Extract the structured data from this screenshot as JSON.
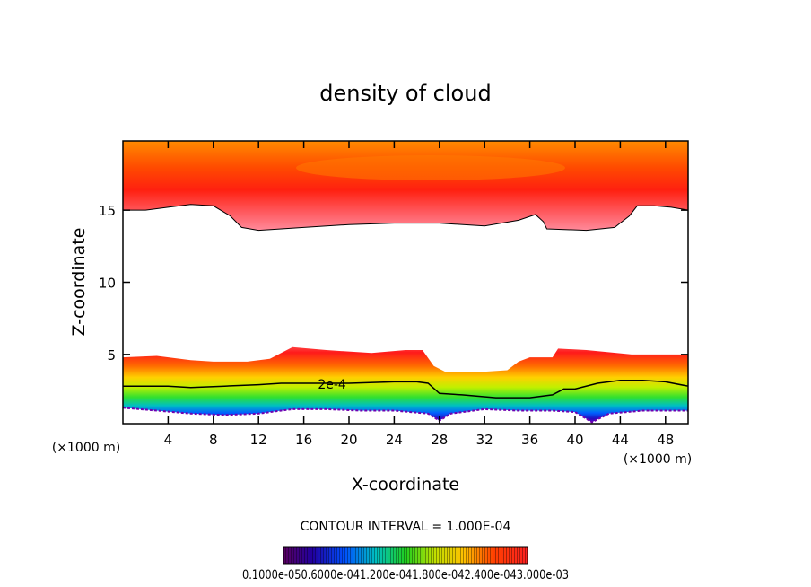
{
  "chart_data": {
    "type": "heatmap",
    "title": "density of cloud",
    "xlabel": "X-coordinate",
    "ylabel": "Z-coordinate",
    "x_unit_left": "(×1000 m)",
    "x_unit_right": "(×1000 m)",
    "xlim": [
      0,
      50
    ],
    "ylim": [
      0.2,
      19.8
    ],
    "x_ticks": [
      4,
      8,
      12,
      16,
      20,
      24,
      28,
      32,
      36,
      40,
      44,
      48
    ],
    "y_ticks": [
      5,
      10,
      15
    ],
    "contour_label": "2e-4",
    "contour_label_position": [
      18.5,
      2.95
    ],
    "contour_interval_text": "CONTOUR INTERVAL = 1.000E-04",
    "colorbar_labels_text": "0.1000e-050.6000e-041.200e-041.800e-042.400e-043.000e-03",
    "upper_layer": {
      "top_z": 19.8,
      "bottom_boundary": [
        [
          0,
          15.0
        ],
        [
          2,
          15.0
        ],
        [
          4,
          15.2
        ],
        [
          6,
          15.4
        ],
        [
          8,
          15.3
        ],
        [
          9.5,
          14.6
        ],
        [
          10.5,
          13.8
        ],
        [
          12,
          13.6
        ],
        [
          16,
          13.8
        ],
        [
          20,
          14.0
        ],
        [
          24,
          14.1
        ],
        [
          28,
          14.1
        ],
        [
          32,
          13.9
        ],
        [
          35,
          14.3
        ],
        [
          36.5,
          14.7
        ],
        [
          37.2,
          14.2
        ],
        [
          37.5,
          13.7
        ],
        [
          41,
          13.6
        ],
        [
          43.5,
          13.8
        ],
        [
          44.8,
          14.6
        ],
        [
          45.5,
          15.3
        ],
        [
          47,
          15.3
        ],
        [
          48.5,
          15.2
        ],
        [
          50,
          15.0
        ]
      ],
      "peak_z": 18.5
    },
    "lower_layer": {
      "top_boundary": [
        [
          0,
          4.8
        ],
        [
          3,
          4.9
        ],
        [
          6,
          4.6
        ],
        [
          8,
          4.5
        ],
        [
          11,
          4.5
        ],
        [
          13,
          4.7
        ],
        [
          14,
          5.1
        ],
        [
          15,
          5.5
        ],
        [
          18,
          5.3
        ],
        [
          22,
          5.1
        ],
        [
          25,
          5.3
        ],
        [
          26.5,
          5.3
        ],
        [
          27.5,
          4.2
        ],
        [
          28.5,
          3.8
        ],
        [
          32,
          3.8
        ],
        [
          34,
          3.9
        ],
        [
          35,
          4.5
        ],
        [
          36,
          4.8
        ],
        [
          38,
          4.8
        ],
        [
          38.5,
          5.4
        ],
        [
          41,
          5.3
        ],
        [
          45,
          5.0
        ],
        [
          48,
          5.0
        ],
        [
          50,
          5.0
        ]
      ],
      "contour_2e4": [
        [
          0,
          2.8
        ],
        [
          4,
          2.8
        ],
        [
          6,
          2.7
        ],
        [
          9,
          2.8
        ],
        [
          12,
          2.9
        ],
        [
          14,
          3.0
        ],
        [
          16,
          3.0
        ],
        [
          20,
          3.0
        ],
        [
          24,
          3.1
        ],
        [
          26,
          3.1
        ],
        [
          27,
          3.0
        ],
        [
          28,
          2.3
        ],
        [
          30,
          2.2
        ],
        [
          33,
          2.0
        ],
        [
          36,
          2.0
        ],
        [
          38,
          2.2
        ],
        [
          39,
          2.6
        ],
        [
          40,
          2.6
        ],
        [
          42,
          3.0
        ],
        [
          44,
          3.2
        ],
        [
          46,
          3.2
        ],
        [
          48,
          3.1
        ],
        [
          50,
          2.8
        ]
      ],
      "base_boundary": [
        [
          0,
          1.3
        ],
        [
          3,
          1.1
        ],
        [
          6,
          0.9
        ],
        [
          9,
          0.8
        ],
        [
          12,
          0.9
        ],
        [
          15,
          1.2
        ],
        [
          18,
          1.2
        ],
        [
          21,
          1.1
        ],
        [
          24,
          1.1
        ],
        [
          27,
          0.9
        ],
        [
          28,
          0.4
        ],
        [
          29,
          0.9
        ],
        [
          32,
          1.2
        ],
        [
          35,
          1.1
        ],
        [
          38,
          1.1
        ],
        [
          40,
          1.0
        ],
        [
          41.5,
          0.3
        ],
        [
          43,
          0.9
        ],
        [
          46,
          1.1
        ],
        [
          48,
          1.1
        ],
        [
          50,
          1.1
        ]
      ]
    }
  }
}
